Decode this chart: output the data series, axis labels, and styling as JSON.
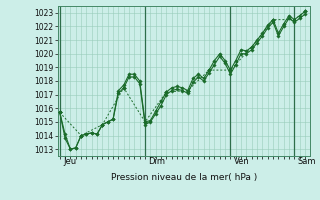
{
  "bg_color": "#cceee8",
  "grid_color": "#99ccbb",
  "line_color": "#1a6b2a",
  "marker_color": "#1a6b2a",
  "xlabel": "Pression niveau de la mer( hPa )",
  "ylim": [
    1012.5,
    1023.5
  ],
  "yticks": [
    1013,
    1014,
    1015,
    1016,
    1017,
    1018,
    1019,
    1020,
    1021,
    1022,
    1023
  ],
  "day_labels": [
    "Jeu",
    "Dim",
    "Ven",
    "Sam"
  ],
  "n_points": 24,
  "series1_x": [
    0,
    0.5,
    1,
    1.5,
    2,
    2.5,
    3,
    3.5,
    4,
    4.5,
    5,
    5.5,
    6,
    6.5,
    7,
    7.5,
    8,
    8.5,
    9,
    9.5,
    10,
    10.5,
    11,
    11.5,
    12,
    12.5,
    13,
    13.5,
    14,
    14.5,
    15,
    15.5,
    16,
    16.5,
    17,
    17.5,
    18,
    18.5,
    19,
    19.5,
    20,
    20.5,
    21,
    21.5,
    22,
    22.5,
    23
  ],
  "series1_y": [
    1015.7,
    1014.1,
    1013.0,
    1013.1,
    1014.0,
    1014.1,
    1014.2,
    1014.1,
    1014.8,
    1015.0,
    1015.2,
    1017.3,
    1017.7,
    1018.5,
    1018.5,
    1018.0,
    1015.0,
    1015.1,
    1015.8,
    1016.5,
    1017.2,
    1017.5,
    1017.6,
    1017.5,
    1017.3,
    1018.2,
    1018.5,
    1018.2,
    1018.8,
    1019.5,
    1020.0,
    1019.5,
    1018.8,
    1019.5,
    1020.3,
    1020.2,
    1020.5,
    1021.0,
    1021.5,
    1022.1,
    1022.5,
    1021.5,
    1022.2,
    1022.8,
    1022.5,
    1022.8,
    1023.1
  ],
  "series2_x": [
    0,
    0.5,
    1,
    1.5,
    2,
    2.5,
    3,
    3.5,
    4,
    4.5,
    5,
    5.5,
    6,
    6.5,
    7,
    7.5,
    8,
    8.5,
    9,
    9.5,
    10,
    10.5,
    11,
    11.5,
    12,
    12.5,
    13,
    13.5,
    14,
    14.5,
    15,
    15.5,
    16,
    16.5,
    17,
    17.5,
    18,
    18.5,
    19,
    19.5,
    20,
    20.5,
    21,
    21.5,
    22,
    22.5,
    23
  ],
  "series2_y": [
    1015.7,
    1013.8,
    1013.0,
    1013.1,
    1014.0,
    1014.1,
    1014.2,
    1014.1,
    1014.8,
    1015.0,
    1015.2,
    1017.1,
    1017.5,
    1018.3,
    1018.3,
    1017.8,
    1014.8,
    1015.0,
    1015.6,
    1016.2,
    1017.0,
    1017.3,
    1017.4,
    1017.3,
    1017.1,
    1017.9,
    1018.3,
    1018.0,
    1018.6,
    1019.2,
    1019.8,
    1019.3,
    1018.5,
    1019.2,
    1020.0,
    1020.0,
    1020.3,
    1020.8,
    1021.3,
    1021.9,
    1022.3,
    1021.3,
    1022.0,
    1022.6,
    1022.3,
    1022.6,
    1022.9
  ],
  "series3_x": [
    0,
    2,
    4,
    6,
    8,
    10,
    12,
    14,
    16,
    18,
    20,
    22,
    23
  ],
  "series3_y": [
    1015.7,
    1014.0,
    1014.8,
    1017.5,
    1015.0,
    1017.2,
    1017.3,
    1018.8,
    1018.8,
    1020.5,
    1022.5,
    1022.5,
    1023.1
  ],
  "vline_positions": [
    0,
    8,
    16,
    22
  ],
  "xlim": [
    -0.2,
    23.5
  ]
}
